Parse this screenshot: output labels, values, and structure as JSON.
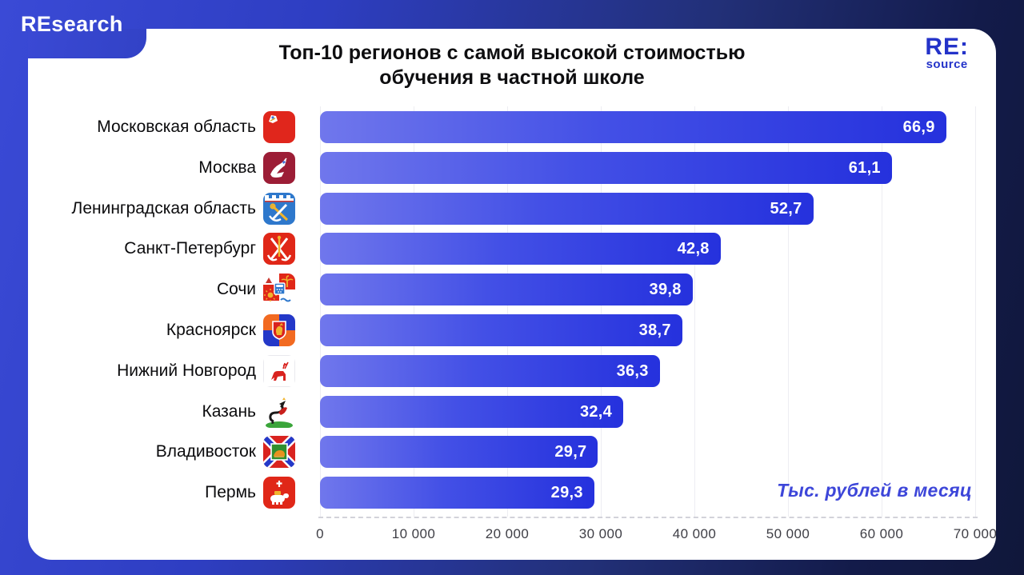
{
  "brand": {
    "top_left_logo": "REsearch",
    "corner_logo_line1": "RE:",
    "corner_logo_line2": "source"
  },
  "chart_data": {
    "type": "bar",
    "orientation": "horizontal",
    "title_line1": "Топ-10 регионов с самой высокой стоимостью",
    "title_line2": "обучения в частной школе",
    "unit_note": "Тыс. рублей в месяц",
    "categories": [
      "Московская область",
      "Москва",
      "Ленинградская область",
      "Санкт-Петербург",
      "Сочи",
      "Красноярск",
      "Нижний Новгород",
      "Казань",
      "Владивосток",
      "Пермь"
    ],
    "values": [
      66.9,
      61.1,
      52.7,
      42.8,
      39.8,
      38.7,
      36.3,
      32.4,
      29.7,
      29.3
    ],
    "value_labels": [
      "66,9",
      "61,1",
      "52,7",
      "42,8",
      "39,8",
      "38,7",
      "36,3",
      "32,4",
      "29,7",
      "29,3"
    ],
    "values_unit": "thousand rubles per month",
    "icons": [
      "moscow-oblast-coat-of-arms",
      "moscow-coat-of-arms",
      "leningrad-oblast-coat-of-arms",
      "saint-petersburg-coat-of-arms",
      "sochi-coat-of-arms",
      "krasnoyarsk-coat-of-arms",
      "nizhny-novgorod-coat-of-arms",
      "kazan-coat-of-arms",
      "vladivostok-coat-of-arms",
      "perm-coat-of-arms"
    ],
    "xlabel": "",
    "ylabel": "",
    "xlim": [
      0,
      70000
    ],
    "x_axis": {
      "ticks": [
        "0",
        "10 000",
        "20 000",
        "30 000",
        "40 000",
        "50 000",
        "60 000",
        "70 000"
      ],
      "gridlines": true
    },
    "legend": "none"
  },
  "colors": {
    "background_start": "#3a4ad6",
    "background_end": "#10173a",
    "card": "#ffffff",
    "bar_gradient_start": "#7077ec",
    "bar_gradient_end": "#2531dd",
    "accent_blue": "#2433c9",
    "note_blue": "#3d46d9",
    "title_text": "#0e0e10",
    "tick_text": "#3e3e45"
  }
}
